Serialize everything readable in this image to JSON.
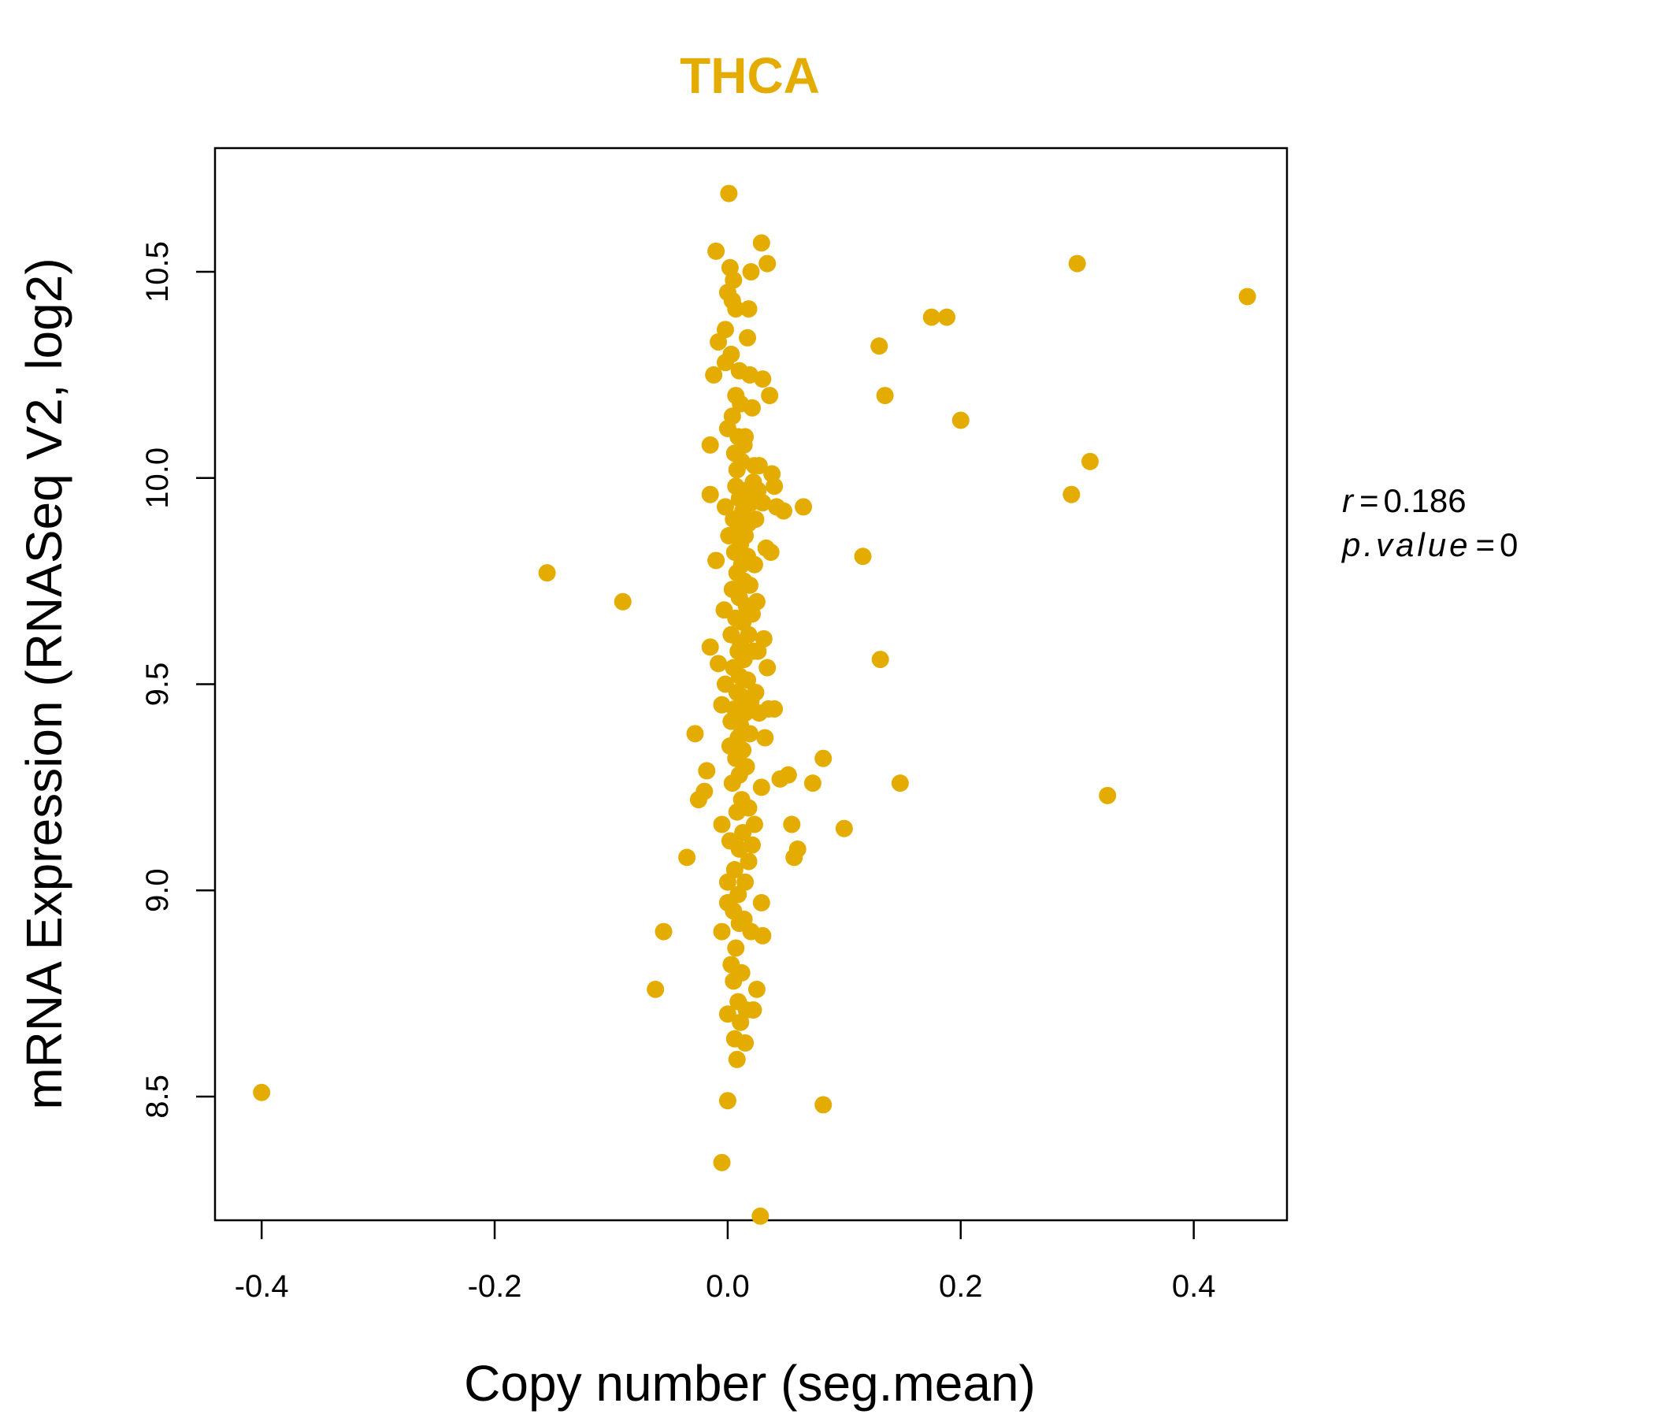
{
  "chart_data": {
    "type": "scatter",
    "title": "THCA",
    "xlabel": "Copy number (seg.mean)",
    "ylabel": "mRNA Expression (RNASeq V2, log2)",
    "xlim": [
      -0.44,
      0.48
    ],
    "ylim": [
      8.2,
      10.8
    ],
    "xticks": [
      -0.4,
      -0.2,
      0.0,
      0.2,
      0.4
    ],
    "xtick_labels": [
      "-0.4",
      "-0.2",
      "0.0",
      "0.2",
      "0.4"
    ],
    "yticks": [
      8.5,
      9.0,
      9.5,
      10.0,
      10.5
    ],
    "ytick_labels": [
      "8.5",
      "9.0",
      "9.5",
      "10.0",
      "10.5"
    ],
    "color": "#E5AC00",
    "stats": {
      "r_label": "r",
      "r_value": "0.186",
      "p_label": "p.value",
      "p_value": "0"
    },
    "points": [
      [
        -0.4,
        8.51
      ],
      [
        -0.155,
        9.77
      ],
      [
        -0.09,
        9.7
      ],
      [
        -0.062,
        8.76
      ],
      [
        -0.055,
        8.9
      ],
      [
        -0.035,
        9.08
      ],
      [
        -0.028,
        9.38
      ],
      [
        -0.025,
        9.22
      ],
      [
        -0.02,
        9.24
      ],
      [
        -0.018,
        9.29
      ],
      [
        -0.015,
        10.08
      ],
      [
        -0.015,
        9.96
      ],
      [
        -0.015,
        9.59
      ],
      [
        -0.012,
        10.25
      ],
      [
        -0.01,
        10.55
      ],
      [
        -0.01,
        9.8
      ],
      [
        -0.008,
        10.33
      ],
      [
        -0.008,
        9.55
      ],
      [
        -0.005,
        9.45
      ],
      [
        -0.005,
        9.16
      ],
      [
        -0.005,
        8.34
      ],
      [
        -0.005,
        8.9
      ],
      [
        -0.003,
        9.68
      ],
      [
        -0.002,
        10.36
      ],
      [
        -0.002,
        10.28
      ],
      [
        -0.002,
        9.93
      ],
      [
        -0.002,
        9.5
      ],
      [
        0.0,
        10.12
      ],
      [
        0.0,
        9.02
      ],
      [
        0.0,
        8.97
      ],
      [
        0.0,
        8.7
      ],
      [
        0.0,
        8.49
      ],
      [
        0.0,
        10.45
      ],
      [
        0.001,
        10.69
      ],
      [
        0.001,
        9.86
      ],
      [
        0.002,
        10.51
      ],
      [
        0.002,
        9.35
      ],
      [
        0.002,
        9.12
      ],
      [
        0.003,
        10.3
      ],
      [
        0.003,
        9.62
      ],
      [
        0.003,
        9.41
      ],
      [
        0.003,
        8.82
      ],
      [
        0.004,
        10.43
      ],
      [
        0.004,
        10.15
      ],
      [
        0.004,
        9.73
      ],
      [
        0.004,
        9.26
      ],
      [
        0.005,
        10.48
      ],
      [
        0.005,
        9.9
      ],
      [
        0.005,
        9.54
      ],
      [
        0.005,
        8.95
      ],
      [
        0.005,
        8.78
      ],
      [
        0.006,
        10.06
      ],
      [
        0.006,
        9.82
      ],
      [
        0.006,
        9.44
      ],
      [
        0.006,
        9.05
      ],
      [
        0.006,
        8.64
      ],
      [
        0.007,
        10.41
      ],
      [
        0.007,
        10.2
      ],
      [
        0.007,
        9.98
      ],
      [
        0.007,
        9.66
      ],
      [
        0.007,
        9.32
      ],
      [
        0.007,
        8.86
      ],
      [
        0.008,
        10.02
      ],
      [
        0.008,
        9.77
      ],
      [
        0.008,
        9.48
      ],
      [
        0.008,
        9.19
      ],
      [
        0.008,
        8.59
      ],
      [
        0.009,
        10.1
      ],
      [
        0.009,
        9.88
      ],
      [
        0.009,
        9.58
      ],
      [
        0.009,
        9.37
      ],
      [
        0.009,
        8.99
      ],
      [
        0.009,
        8.73
      ],
      [
        0.01,
        10.26
      ],
      [
        0.01,
        9.95
      ],
      [
        0.01,
        9.71
      ],
      [
        0.01,
        9.52
      ],
      [
        0.01,
        9.28
      ],
      [
        0.01,
        9.1
      ],
      [
        0.01,
        8.92
      ],
      [
        0.011,
        10.18
      ],
      [
        0.011,
        9.84
      ],
      [
        0.011,
        9.6
      ],
      [
        0.011,
        9.4
      ],
      [
        0.011,
        8.68
      ],
      [
        0.012,
        10.04
      ],
      [
        0.012,
        9.79
      ],
      [
        0.012,
        9.47
      ],
      [
        0.012,
        9.22
      ],
      [
        0.012,
        8.8
      ],
      [
        0.013,
        9.92
      ],
      [
        0.013,
        9.65
      ],
      [
        0.013,
        9.34
      ],
      [
        0.013,
        9.14
      ],
      [
        0.014,
        10.08
      ],
      [
        0.014,
        9.75
      ],
      [
        0.014,
        9.56
      ],
      [
        0.014,
        8.93
      ],
      [
        0.015,
        10.1
      ],
      [
        0.015,
        9.86
      ],
      [
        0.015,
        9.43
      ],
      [
        0.015,
        9.02
      ],
      [
        0.015,
        8.63
      ],
      [
        0.016,
        9.97
      ],
      [
        0.016,
        9.69
      ],
      [
        0.016,
        9.3
      ],
      [
        0.016,
        8.71
      ],
      [
        0.017,
        10.34
      ],
      [
        0.017,
        9.81
      ],
      [
        0.017,
        9.51
      ],
      [
        0.018,
        10.41
      ],
      [
        0.018,
        9.89
      ],
      [
        0.018,
        9.62
      ],
      [
        0.018,
        9.2
      ],
      [
        0.018,
        9.07
      ],
      [
        0.019,
        10.25
      ],
      [
        0.019,
        9.74
      ],
      [
        0.019,
        9.38
      ],
      [
        0.02,
        10.5
      ],
      [
        0.02,
        9.94
      ],
      [
        0.02,
        9.46
      ],
      [
        0.02,
        8.9
      ],
      [
        0.021,
        10.17
      ],
      [
        0.021,
        9.67
      ],
      [
        0.021,
        9.11
      ],
      [
        0.022,
        9.99
      ],
      [
        0.022,
        9.58
      ],
      [
        0.022,
        8.71
      ],
      [
        0.023,
        10.03
      ],
      [
        0.023,
        9.79
      ],
      [
        0.023,
        9.16
      ],
      [
        0.024,
        9.9
      ],
      [
        0.024,
        9.48
      ],
      [
        0.025,
        9.7
      ],
      [
        0.025,
        8.76
      ],
      [
        0.026,
        9.97
      ],
      [
        0.026,
        9.58
      ],
      [
        0.027,
        10.03
      ],
      [
        0.027,
        9.43
      ],
      [
        0.028,
        8.21
      ],
      [
        0.029,
        10.57
      ],
      [
        0.029,
        8.97
      ],
      [
        0.029,
        9.25
      ],
      [
        0.03,
        10.24
      ],
      [
        0.03,
        9.94
      ],
      [
        0.03,
        8.89
      ],
      [
        0.031,
        9.61
      ],
      [
        0.032,
        9.37
      ],
      [
        0.033,
        9.83
      ],
      [
        0.034,
        9.54
      ],
      [
        0.034,
        10.52
      ],
      [
        0.035,
        9.44
      ],
      [
        0.036,
        10.2
      ],
      [
        0.037,
        9.82
      ],
      [
        0.038,
        10.01
      ],
      [
        0.04,
        9.98
      ],
      [
        0.04,
        9.44
      ],
      [
        0.042,
        9.93
      ],
      [
        0.045,
        9.27
      ],
      [
        0.048,
        9.92
      ],
      [
        0.052,
        9.28
      ],
      [
        0.055,
        9.16
      ],
      [
        0.057,
        9.08
      ],
      [
        0.06,
        9.1
      ],
      [
        0.065,
        9.93
      ],
      [
        0.073,
        9.26
      ],
      [
        0.082,
        9.32
      ],
      [
        0.082,
        8.48
      ],
      [
        0.1,
        9.15
      ],
      [
        0.116,
        9.81
      ],
      [
        0.13,
        10.32
      ],
      [
        0.131,
        9.56
      ],
      [
        0.135,
        10.2
      ],
      [
        0.148,
        9.26
      ],
      [
        0.175,
        10.39
      ],
      [
        0.188,
        10.39
      ],
      [
        0.2,
        10.14
      ],
      [
        0.295,
        9.96
      ],
      [
        0.3,
        10.52
      ],
      [
        0.311,
        10.04
      ],
      [
        0.326,
        9.23
      ],
      [
        0.446,
        10.44
      ]
    ]
  }
}
